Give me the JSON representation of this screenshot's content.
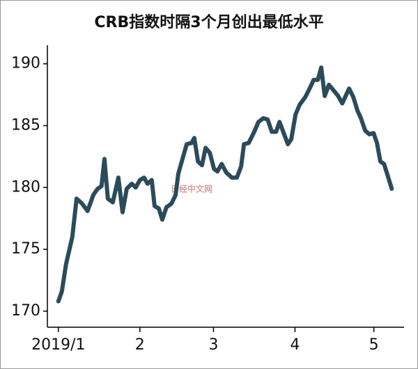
{
  "chart_data": {
    "type": "line",
    "title": "CRB指数时隔3个月创出最低水平",
    "watermark": "日经中文网",
    "x": [
      0,
      1.3,
      2.9,
      5.3,
      6.9,
      9.0,
      11.1,
      13.3,
      14.9,
      16.4,
      17.5,
      18.8,
      20.7,
      22.8,
      24.4,
      26.0,
      27.9,
      29.4,
      31.0,
      32.6,
      33.9,
      35.5,
      36.6,
      38.2,
      39.5,
      41.1,
      43.0,
      44.6,
      45.6,
      47.2,
      48.8,
      50.7,
      51.7,
      53.1,
      54.6,
      56.0,
      57.6,
      59.2,
      60.5,
      62.1,
      63.9,
      66.0,
      67.9,
      69.5,
      70.6,
      72.4,
      74.5,
      76.1,
      78.0,
      79.6,
      81.2,
      82.8,
      84.1,
      85.7,
      87.3,
      88.6,
      90.2,
      91.8,
      93.9,
      95.8,
      97.1,
      98.7,
      100.0,
      101.3,
      102.9,
      104.5,
      106.4,
      108.0,
      109.3,
      110.6,
      112.2,
      113.8,
      115.1,
      116.7,
      118.3,
      119.9,
      121.2,
      122.5,
      123.9,
      125.5,
      126.8
    ],
    "series": [
      {
        "name": "CRB指数",
        "color": "#2b4b5b",
        "values": [
          170.8,
          171.6,
          173.8,
          176.0,
          179.1,
          178.7,
          178.1,
          179.4,
          179.9,
          180.1,
          182.3,
          179.1,
          178.8,
          180.8,
          178.0,
          179.9,
          180.3,
          180.0,
          180.6,
          180.8,
          180.3,
          180.6,
          178.5,
          178.3,
          177.4,
          178.4,
          178.7,
          179.4,
          181.1,
          182.3,
          183.5,
          183.6,
          184.0,
          182.1,
          181.8,
          183.2,
          182.8,
          181.5,
          181.3,
          181.9,
          181.2,
          180.8,
          180.8,
          181.7,
          183.5,
          183.6,
          184.5,
          185.3,
          185.6,
          185.5,
          184.5,
          184.5,
          185.3,
          184.4,
          183.5,
          183.9,
          185.9,
          186.7,
          187.3,
          188.1,
          188.7,
          188.7,
          189.7,
          187.4,
          188.3,
          187.9,
          187.4,
          186.8,
          187.4,
          188.0,
          187.3,
          186.2,
          185.6,
          184.6,
          184.3,
          184.4,
          183.6,
          182.1,
          181.9,
          180.8,
          179.9
        ]
      }
    ],
    "xlim": [
      -4.2,
      131.5
    ],
    "ylim": [
      168.7,
      191.5
    ],
    "xticks": [
      {
        "value": 0,
        "label": "2019/1"
      },
      {
        "value": 31,
        "label": "2"
      },
      {
        "value": 59,
        "label": "3"
      },
      {
        "value": 90,
        "label": "4"
      },
      {
        "value": 120,
        "label": "5"
      }
    ],
    "yticks": [
      170,
      175,
      180,
      185,
      190
    ]
  }
}
